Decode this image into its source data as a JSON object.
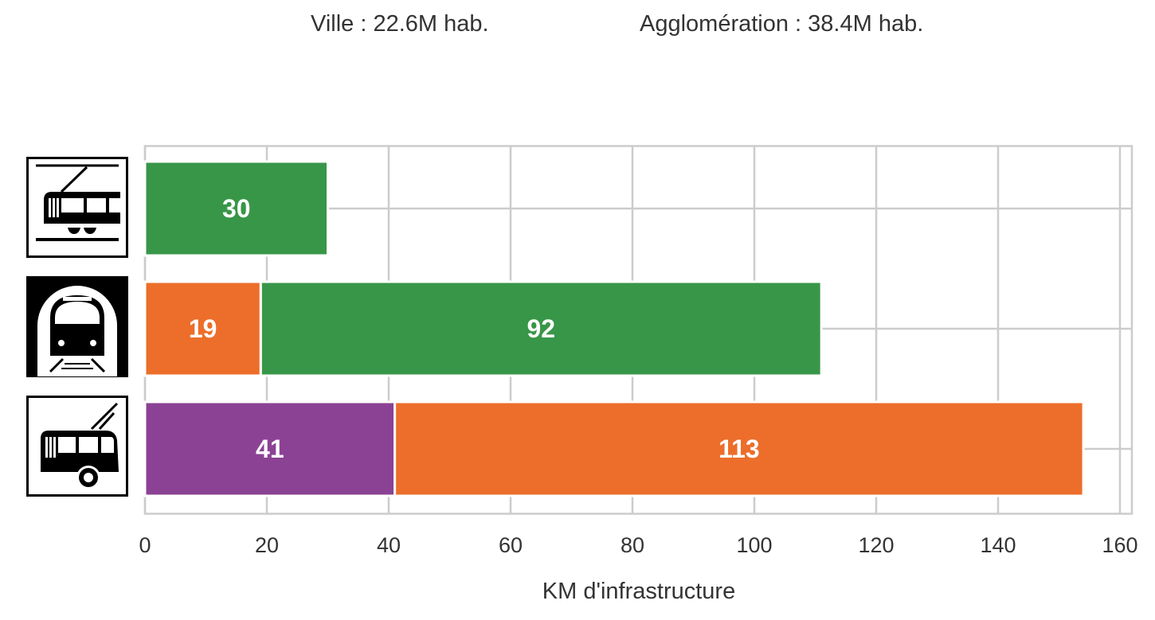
{
  "header": {
    "city": "Ville : 22.6M hab.",
    "agglomeration": "Agglomération : 38.4M hab."
  },
  "chart_data": {
    "type": "bar",
    "orientation": "horizontal",
    "stacked": true,
    "categories": [
      "tram",
      "metro",
      "trolleybus"
    ],
    "category_icons": [
      "tram-icon",
      "metro-icon",
      "trolleybus-icon"
    ],
    "segments": [
      [
        {
          "value": 30,
          "label": "30",
          "color": "#389648"
        }
      ],
      [
        {
          "value": 19,
          "label": "19",
          "color": "#ec6e2a"
        },
        {
          "value": 92,
          "label": "92",
          "color": "#389648"
        }
      ],
      [
        {
          "value": 41,
          "label": "41",
          "color": "#8b4294"
        },
        {
          "value": 113,
          "label": "113",
          "color": "#ec6e2a"
        }
      ]
    ],
    "xlabel": "KM d'infrastructure",
    "xlim": [
      0,
      162
    ],
    "xticks": [
      0,
      20,
      40,
      60,
      80,
      100,
      120,
      140,
      160
    ],
    "grid": true
  }
}
